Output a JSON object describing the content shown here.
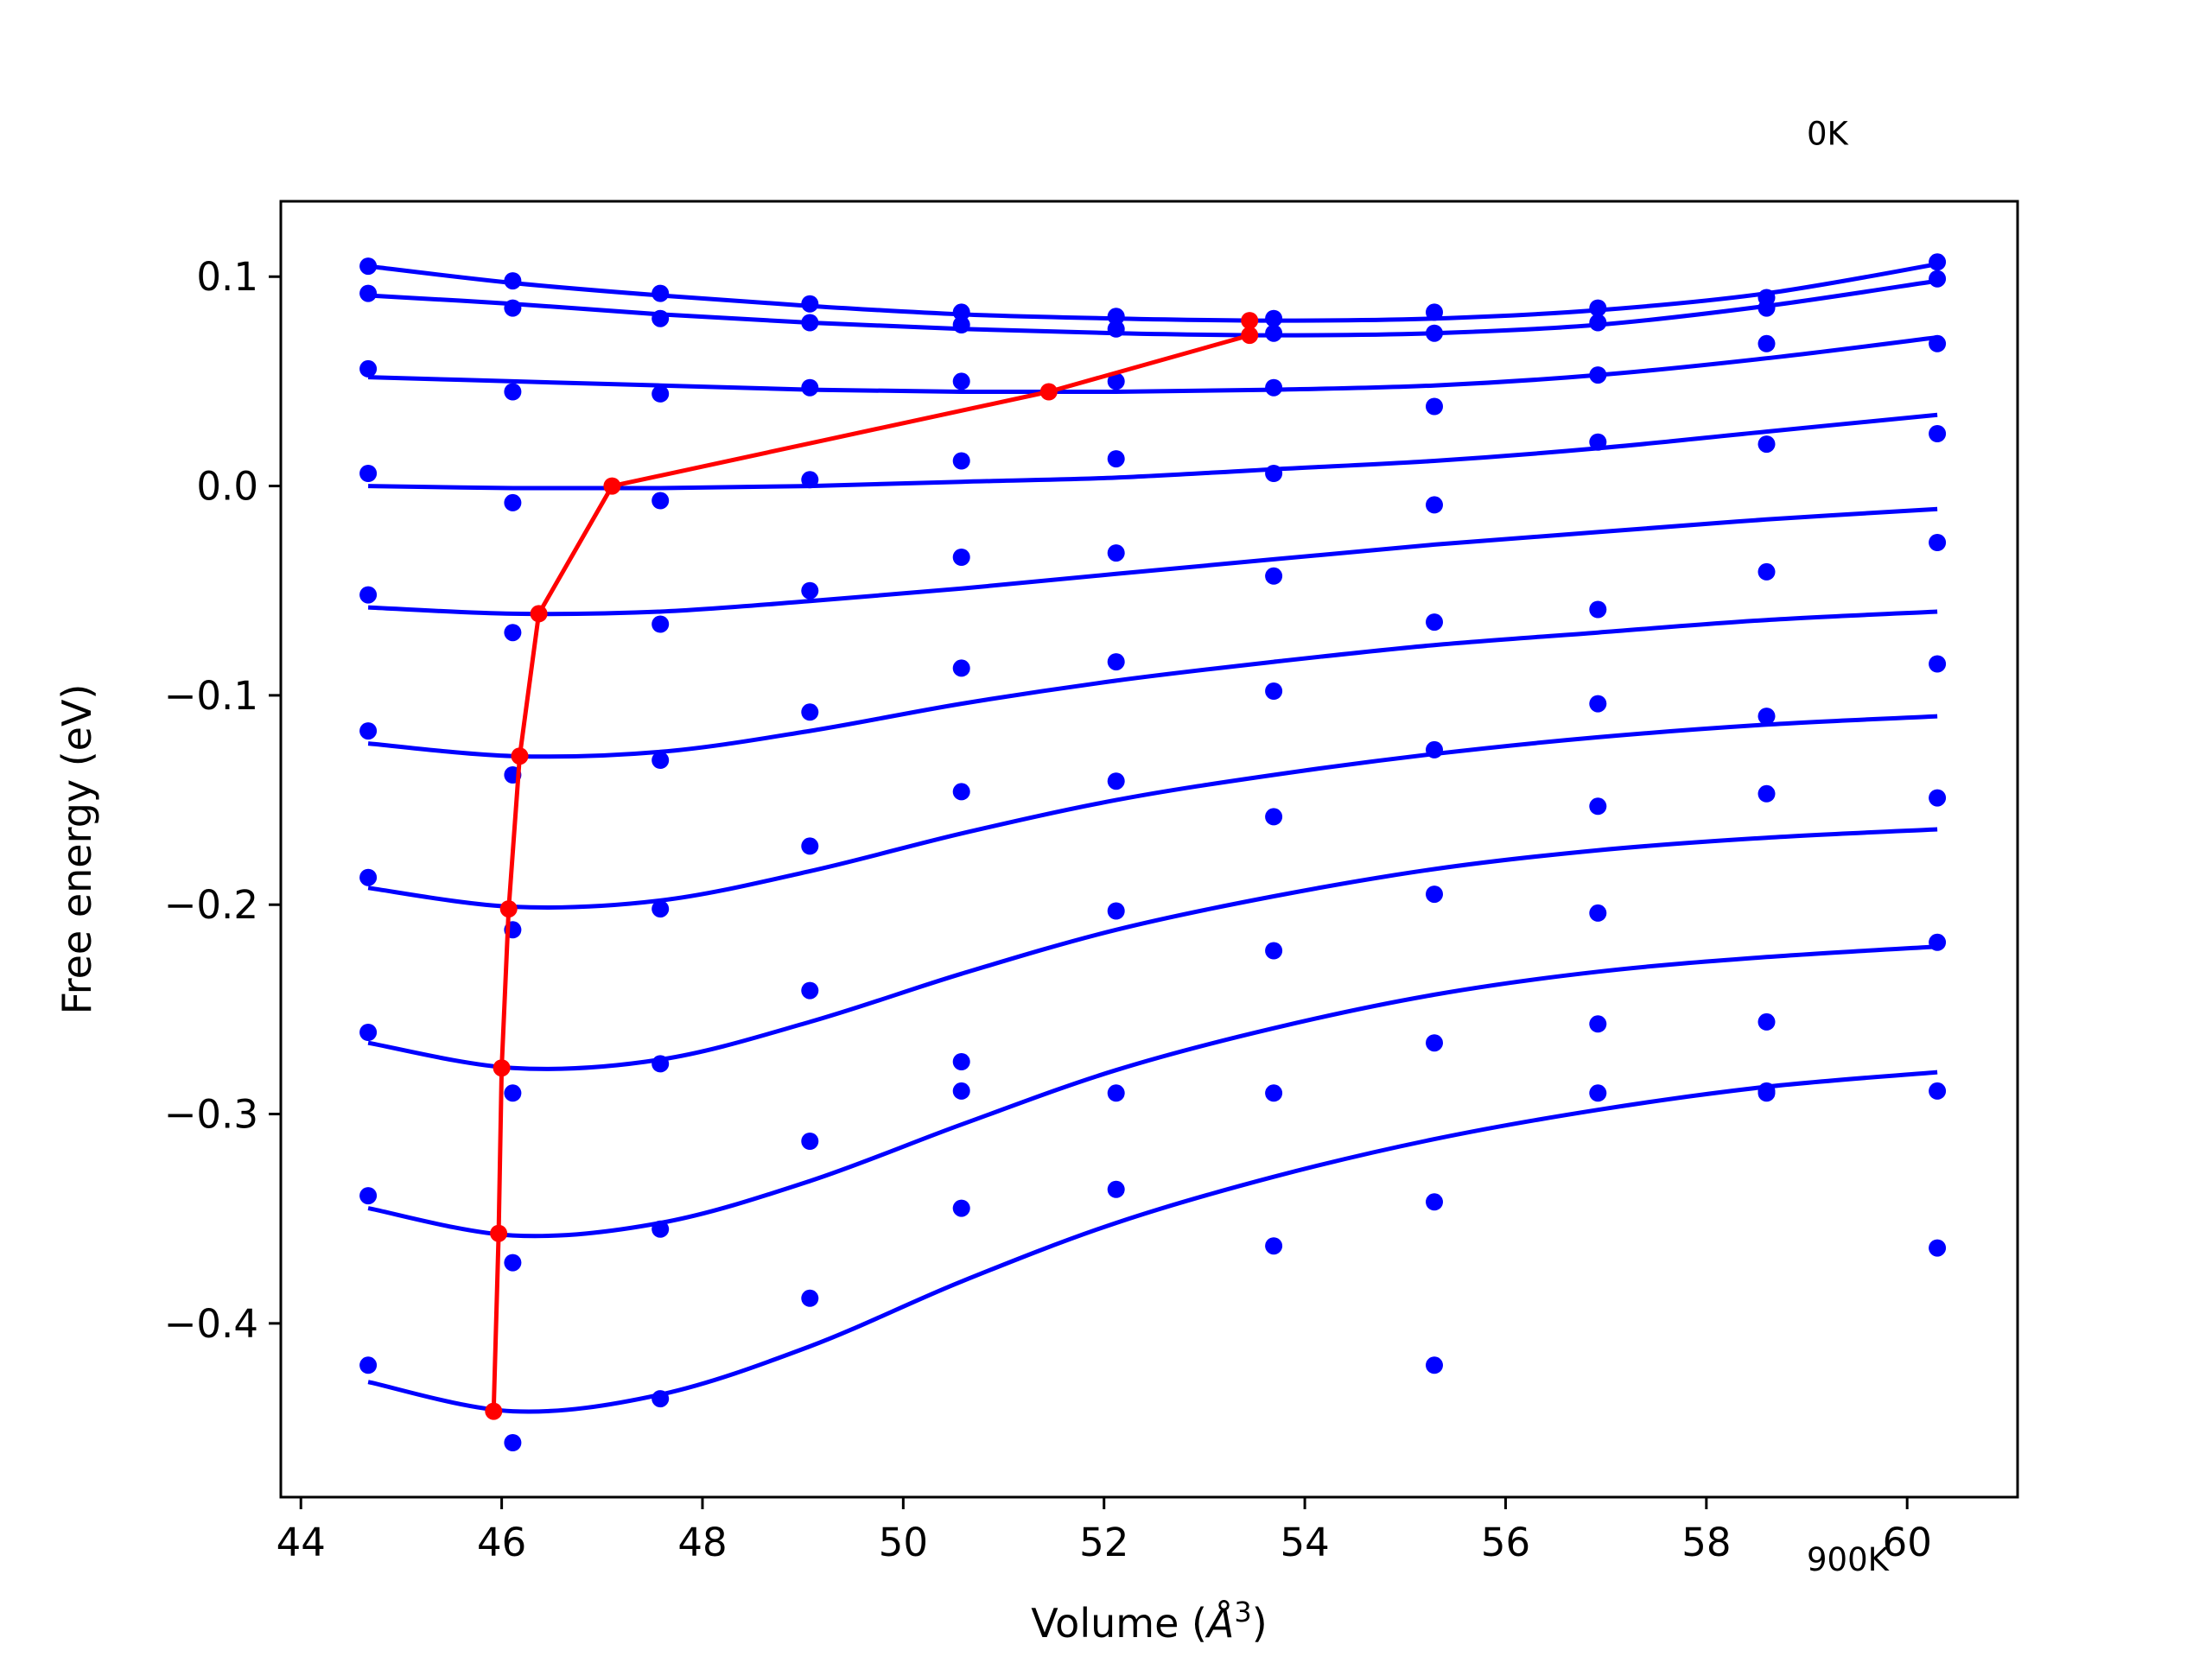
{
  "chart_data": {
    "type": "scatter",
    "xlabel_main": "Volume (",
    "xlabel_unit_base": "Å",
    "xlabel_unit_exp": "3",
    "xlabel_close": ")",
    "ylabel": "Free energy (eV)",
    "xlim": [
      43.8,
      61.1
    ],
    "ylim": [
      -0.483,
      0.136
    ],
    "xticks": [
      44,
      46,
      48,
      50,
      52,
      54,
      56,
      58,
      60
    ],
    "yticks": [
      0.1,
      0.0,
      -0.1,
      -0.2,
      -0.3,
      -0.4
    ],
    "ytick_labels": [
      "0.1",
      "0.0",
      "−0.1",
      "−0.2",
      "−0.3",
      "−0.4"
    ],
    "grid": false,
    "annotations": [
      {
        "text": "0K",
        "x": 59.0,
        "y": 0.163
      },
      {
        "text": "900K",
        "x": 59.0,
        "y": -0.518
      }
    ],
    "colors": {
      "points": "#0000ff",
      "fit": "#0000ff",
      "minima": "#ff0000"
    },
    "volumes": [
      44.67,
      46.11,
      47.58,
      49.07,
      50.58,
      52.12,
      53.69,
      55.29,
      56.92,
      58.6,
      60.3
    ],
    "series": [
      {
        "temperature_index": 0,
        "points": [
          0.105,
          0.098,
          0.092,
          0.087,
          0.083,
          0.081,
          0.08,
          0.083,
          0.085,
          0.09,
          0.107
        ],
        "fit": [
          [
            44.67,
            0.105
          ],
          [
            46.11,
            0.097
          ],
          [
            47.58,
            0.091
          ],
          [
            49.07,
            0.086
          ],
          [
            50.58,
            0.082
          ],
          [
            52.12,
            0.08
          ],
          [
            53.69,
            0.079
          ],
          [
            55.29,
            0.08
          ],
          [
            56.92,
            0.084
          ],
          [
            58.6,
            0.092
          ],
          [
            60.3,
            0.106
          ]
        ]
      },
      {
        "temperature_index": 1,
        "points": [
          0.092,
          0.085,
          0.08,
          0.078,
          0.077,
          0.075,
          0.073,
          0.073,
          0.078,
          0.085,
          0.099
        ],
        "fit": [
          [
            44.67,
            0.091
          ],
          [
            46.11,
            0.087
          ],
          [
            47.58,
            0.082
          ],
          [
            49.07,
            0.078
          ],
          [
            50.58,
            0.075
          ],
          [
            52.12,
            0.073
          ],
          [
            53.69,
            0.072
          ],
          [
            55.29,
            0.073
          ],
          [
            56.92,
            0.077
          ],
          [
            58.6,
            0.086
          ],
          [
            60.3,
            0.098
          ]
        ]
      },
      {
        "temperature_index": 2,
        "points": [
          0.056,
          0.045,
          0.044,
          0.047,
          0.05,
          0.05,
          0.047,
          0.038,
          0.053,
          0.068,
          0.068
        ],
        "fit": [
          [
            44.67,
            0.052
          ],
          [
            46.11,
            0.05
          ],
          [
            47.58,
            0.048
          ],
          [
            49.07,
            0.046
          ],
          [
            50.58,
            0.045
          ],
          [
            52.12,
            0.045
          ],
          [
            53.69,
            0.046
          ],
          [
            55.29,
            0.048
          ],
          [
            56.92,
            0.053
          ],
          [
            58.6,
            0.061
          ],
          [
            60.3,
            0.071
          ]
        ]
      },
      {
        "temperature_index": 3,
        "points": [
          0.006,
          -0.008,
          -0.007,
          0.003,
          0.012,
          0.013,
          0.006,
          -0.009,
          0.021,
          0.02,
          0.025
        ],
        "fit": [
          [
            44.67,
            0.0
          ],
          [
            46.11,
            -0.001
          ],
          [
            47.58,
            -0.001
          ],
          [
            49.07,
            0.0
          ],
          [
            50.58,
            0.002
          ],
          [
            52.12,
            0.004
          ],
          [
            53.69,
            0.008
          ],
          [
            55.29,
            0.012
          ],
          [
            56.92,
            0.018
          ],
          [
            58.6,
            0.026
          ],
          [
            60.3,
            0.034
          ]
        ]
      },
      {
        "temperature_index": 4,
        "points": [
          -0.052,
          -0.07,
          -0.066,
          -0.05,
          -0.034,
          -0.032,
          -0.043,
          -0.065,
          -0.059,
          -0.041,
          -0.027
        ],
        "fit": [
          [
            44.67,
            -0.058
          ],
          [
            46.11,
            -0.061
          ],
          [
            47.58,
            -0.06
          ],
          [
            49.07,
            -0.055
          ],
          [
            50.58,
            -0.049
          ],
          [
            52.12,
            -0.042
          ],
          [
            53.69,
            -0.035
          ],
          [
            55.29,
            -0.028
          ],
          [
            56.92,
            -0.022
          ],
          [
            58.6,
            -0.016
          ],
          [
            60.3,
            -0.011
          ]
        ]
      },
      {
        "temperature_index": 5,
        "points": [
          -0.117,
          -0.138,
          -0.131,
          -0.108,
          -0.087,
          -0.084,
          -0.098,
          -0.126,
          -0.104,
          -0.11,
          -0.085
        ],
        "fit": [
          [
            44.67,
            -0.123
          ],
          [
            46.11,
            -0.129
          ],
          [
            47.58,
            -0.127
          ],
          [
            49.07,
            -0.117
          ],
          [
            50.58,
            -0.104
          ],
          [
            52.12,
            -0.093
          ],
          [
            53.69,
            -0.084
          ],
          [
            55.29,
            -0.076
          ],
          [
            56.92,
            -0.07
          ],
          [
            58.6,
            -0.064
          ],
          [
            60.3,
            -0.06
          ]
        ]
      },
      {
        "temperature_index": 6,
        "points": [
          -0.187,
          -0.212,
          -0.202,
          -0.172,
          -0.146,
          -0.141,
          -0.158,
          -0.195,
          -0.153,
          -0.147,
          -0.149
        ],
        "fit": [
          [
            44.67,
            -0.192
          ],
          [
            46.11,
            -0.201
          ],
          [
            47.58,
            -0.198
          ],
          [
            49.07,
            -0.184
          ],
          [
            50.58,
            -0.166
          ],
          [
            52.12,
            -0.15
          ],
          [
            53.69,
            -0.138
          ],
          [
            55.29,
            -0.128
          ],
          [
            56.92,
            -0.12
          ],
          [
            58.6,
            -0.114
          ],
          [
            60.3,
            -0.11
          ]
        ]
      },
      {
        "temperature_index": 7,
        "points": [
          -0.261,
          -0.29,
          -0.276,
          -0.241,
          -0.275,
          -0.203,
          -0.222,
          -0.266,
          -0.204,
          -0.256,
          -0.218
        ],
        "fit": [
          [
            44.67,
            -0.266
          ],
          [
            46.11,
            -0.278
          ],
          [
            47.58,
            -0.274
          ],
          [
            49.07,
            -0.256
          ],
          [
            50.58,
            -0.233
          ],
          [
            52.12,
            -0.212
          ],
          [
            53.69,
            -0.196
          ],
          [
            55.29,
            -0.183
          ],
          [
            56.92,
            -0.174
          ],
          [
            58.6,
            -0.168
          ],
          [
            60.3,
            -0.164
          ]
        ]
      },
      {
        "temperature_index": 8,
        "points": [
          -0.339,
          -0.371,
          -0.355,
          -0.313,
          -0.345,
          -0.336,
          -0.363,
          -0.342,
          -0.257,
          -0.289,
          -0.289
        ],
        "fit": [
          [
            44.67,
            -0.345
          ],
          [
            46.11,
            -0.358
          ],
          [
            47.58,
            -0.352
          ],
          [
            49.07,
            -0.332
          ],
          [
            50.58,
            -0.305
          ],
          [
            52.12,
            -0.279
          ],
          [
            53.69,
            -0.259
          ],
          [
            55.29,
            -0.243
          ],
          [
            56.92,
            -0.232
          ],
          [
            58.6,
            -0.225
          ],
          [
            60.3,
            -0.22
          ]
        ]
      },
      {
        "temperature_index": 9,
        "points": [
          -0.42,
          -0.457,
          -0.436,
          -0.388,
          -0.289,
          -0.29,
          -0.29,
          -0.42,
          -0.29,
          -0.29,
          -0.364
        ],
        "fit": [
          [
            44.67,
            -0.428
          ],
          [
            46.11,
            -0.442
          ],
          [
            47.58,
            -0.434
          ],
          [
            49.07,
            -0.411
          ],
          [
            50.58,
            -0.38
          ],
          [
            52.12,
            -0.352
          ],
          [
            53.69,
            -0.33
          ],
          [
            55.29,
            -0.312
          ],
          [
            56.92,
            -0.298
          ],
          [
            58.6,
            -0.287
          ],
          [
            60.3,
            -0.28
          ]
        ]
      }
    ],
    "minima_line": {
      "name": "",
      "x": [
        53.45,
        53.45,
        51.45,
        47.1,
        46.37,
        46.18,
        46.07,
        46.0,
        45.97,
        45.92
      ],
      "y": [
        0.079,
        0.072,
        0.045,
        0.0,
        -0.061,
        -0.129,
        -0.202,
        -0.278,
        -0.357,
        -0.442
      ]
    }
  }
}
